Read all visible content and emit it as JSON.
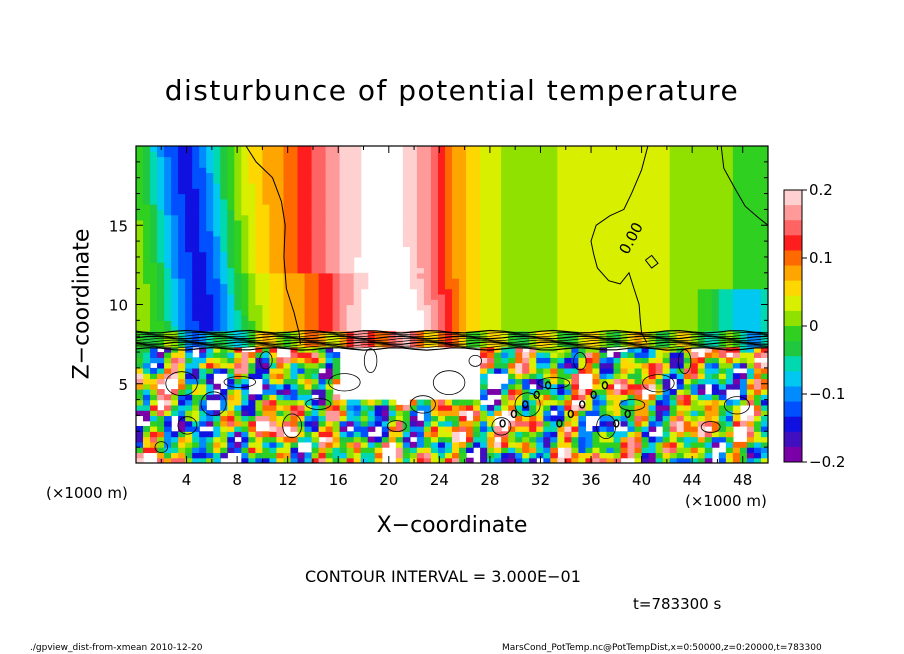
{
  "chart_data": {
    "type": "heatmap",
    "title": "disturbunce of potential temperature",
    "xlabel": "X−coordinate",
    "ylabel": "Z−coordinate",
    "x_unit_label": "(×1000 m)",
    "z_unit_label": "(×1000 m)",
    "xlim": [
      0,
      50
    ],
    "ylim": [
      0,
      20
    ],
    "x_ticks": [
      "4",
      "8",
      "12",
      "16",
      "20",
      "24",
      "28",
      "32",
      "36",
      "40",
      "44",
      "48"
    ],
    "x_tick_values": [
      4,
      8,
      12,
      16,
      20,
      24,
      28,
      32,
      36,
      40,
      44,
      48
    ],
    "y_ticks": [
      "5",
      "10",
      "15"
    ],
    "y_tick_values": [
      5,
      10,
      15
    ],
    "colorbar": {
      "range": [
        -0.2,
        0.2
      ],
      "ticks": [
        "0.2",
        "0.1",
        "0",
        "−0.1",
        "−0.2"
      ],
      "tick_values": [
        0.2,
        0.1,
        0,
        -0.1,
        -0.2
      ],
      "colors": [
        "#ffd0d0",
        "#ff9a9a",
        "#ff6464",
        "#ff1e1e",
        "#ff6a00",
        "#ffa500",
        "#ffd700",
        "#d8f000",
        "#90e000",
        "#30d020",
        "#20c840",
        "#00d8b0",
        "#00c8f0",
        "#008cff",
        "#0050ff",
        "#1010e0",
        "#4010c0",
        "#7a00a8"
      ]
    },
    "contour_label": "0.00",
    "annotations": {
      "contour_interval": "CONTOUR INTERVAL = 3.000E−01",
      "time": "t=783300 s"
    }
  },
  "footer": {
    "left": "./gpview_dist-from-xmean  2010-12-20",
    "right": "MarsCond_PotTemp.nc@PotTempDist,x=0:50000,z=0:20000,t=783300"
  }
}
